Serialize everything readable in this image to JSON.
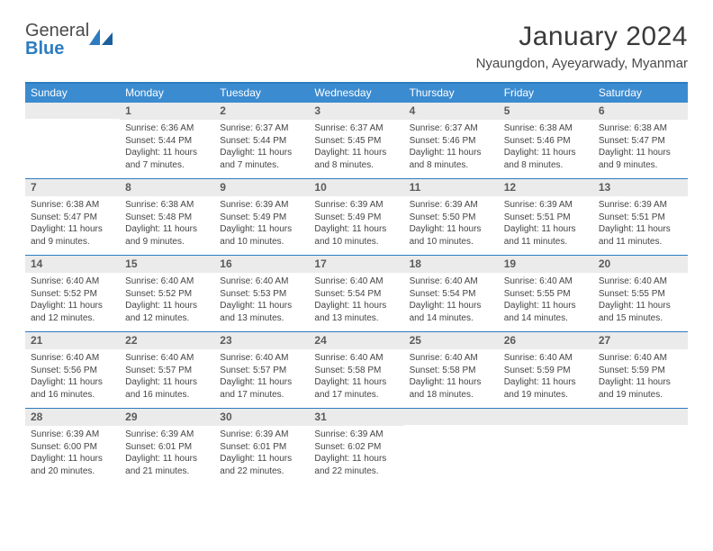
{
  "brand": {
    "part1": "General",
    "part2": "Blue"
  },
  "title": "January 2024",
  "location": "Nyaungdon, Ayeyarwady, Myanmar",
  "colors": {
    "header_bg": "#3b8bd0",
    "border": "#2d7cc0",
    "daynum_bg": "#ebebeb",
    "text": "#444444"
  },
  "dow": [
    "Sunday",
    "Monday",
    "Tuesday",
    "Wednesday",
    "Thursday",
    "Friday",
    "Saturday"
  ],
  "weeks": [
    [
      {
        "n": "",
        "sr": "",
        "ss": "",
        "dl": ""
      },
      {
        "n": "1",
        "sr": "Sunrise: 6:36 AM",
        "ss": "Sunset: 5:44 PM",
        "dl": "Daylight: 11 hours and 7 minutes."
      },
      {
        "n": "2",
        "sr": "Sunrise: 6:37 AM",
        "ss": "Sunset: 5:44 PM",
        "dl": "Daylight: 11 hours and 7 minutes."
      },
      {
        "n": "3",
        "sr": "Sunrise: 6:37 AM",
        "ss": "Sunset: 5:45 PM",
        "dl": "Daylight: 11 hours and 8 minutes."
      },
      {
        "n": "4",
        "sr": "Sunrise: 6:37 AM",
        "ss": "Sunset: 5:46 PM",
        "dl": "Daylight: 11 hours and 8 minutes."
      },
      {
        "n": "5",
        "sr": "Sunrise: 6:38 AM",
        "ss": "Sunset: 5:46 PM",
        "dl": "Daylight: 11 hours and 8 minutes."
      },
      {
        "n": "6",
        "sr": "Sunrise: 6:38 AM",
        "ss": "Sunset: 5:47 PM",
        "dl": "Daylight: 11 hours and 9 minutes."
      }
    ],
    [
      {
        "n": "7",
        "sr": "Sunrise: 6:38 AM",
        "ss": "Sunset: 5:47 PM",
        "dl": "Daylight: 11 hours and 9 minutes."
      },
      {
        "n": "8",
        "sr": "Sunrise: 6:38 AM",
        "ss": "Sunset: 5:48 PM",
        "dl": "Daylight: 11 hours and 9 minutes."
      },
      {
        "n": "9",
        "sr": "Sunrise: 6:39 AM",
        "ss": "Sunset: 5:49 PM",
        "dl": "Daylight: 11 hours and 10 minutes."
      },
      {
        "n": "10",
        "sr": "Sunrise: 6:39 AM",
        "ss": "Sunset: 5:49 PM",
        "dl": "Daylight: 11 hours and 10 minutes."
      },
      {
        "n": "11",
        "sr": "Sunrise: 6:39 AM",
        "ss": "Sunset: 5:50 PM",
        "dl": "Daylight: 11 hours and 10 minutes."
      },
      {
        "n": "12",
        "sr": "Sunrise: 6:39 AM",
        "ss": "Sunset: 5:51 PM",
        "dl": "Daylight: 11 hours and 11 minutes."
      },
      {
        "n": "13",
        "sr": "Sunrise: 6:39 AM",
        "ss": "Sunset: 5:51 PM",
        "dl": "Daylight: 11 hours and 11 minutes."
      }
    ],
    [
      {
        "n": "14",
        "sr": "Sunrise: 6:40 AM",
        "ss": "Sunset: 5:52 PM",
        "dl": "Daylight: 11 hours and 12 minutes."
      },
      {
        "n": "15",
        "sr": "Sunrise: 6:40 AM",
        "ss": "Sunset: 5:52 PM",
        "dl": "Daylight: 11 hours and 12 minutes."
      },
      {
        "n": "16",
        "sr": "Sunrise: 6:40 AM",
        "ss": "Sunset: 5:53 PM",
        "dl": "Daylight: 11 hours and 13 minutes."
      },
      {
        "n": "17",
        "sr": "Sunrise: 6:40 AM",
        "ss": "Sunset: 5:54 PM",
        "dl": "Daylight: 11 hours and 13 minutes."
      },
      {
        "n": "18",
        "sr": "Sunrise: 6:40 AM",
        "ss": "Sunset: 5:54 PM",
        "dl": "Daylight: 11 hours and 14 minutes."
      },
      {
        "n": "19",
        "sr": "Sunrise: 6:40 AM",
        "ss": "Sunset: 5:55 PM",
        "dl": "Daylight: 11 hours and 14 minutes."
      },
      {
        "n": "20",
        "sr": "Sunrise: 6:40 AM",
        "ss": "Sunset: 5:55 PM",
        "dl": "Daylight: 11 hours and 15 minutes."
      }
    ],
    [
      {
        "n": "21",
        "sr": "Sunrise: 6:40 AM",
        "ss": "Sunset: 5:56 PM",
        "dl": "Daylight: 11 hours and 16 minutes."
      },
      {
        "n": "22",
        "sr": "Sunrise: 6:40 AM",
        "ss": "Sunset: 5:57 PM",
        "dl": "Daylight: 11 hours and 16 minutes."
      },
      {
        "n": "23",
        "sr": "Sunrise: 6:40 AM",
        "ss": "Sunset: 5:57 PM",
        "dl": "Daylight: 11 hours and 17 minutes."
      },
      {
        "n": "24",
        "sr": "Sunrise: 6:40 AM",
        "ss": "Sunset: 5:58 PM",
        "dl": "Daylight: 11 hours and 17 minutes."
      },
      {
        "n": "25",
        "sr": "Sunrise: 6:40 AM",
        "ss": "Sunset: 5:58 PM",
        "dl": "Daylight: 11 hours and 18 minutes."
      },
      {
        "n": "26",
        "sr": "Sunrise: 6:40 AM",
        "ss": "Sunset: 5:59 PM",
        "dl": "Daylight: 11 hours and 19 minutes."
      },
      {
        "n": "27",
        "sr": "Sunrise: 6:40 AM",
        "ss": "Sunset: 5:59 PM",
        "dl": "Daylight: 11 hours and 19 minutes."
      }
    ],
    [
      {
        "n": "28",
        "sr": "Sunrise: 6:39 AM",
        "ss": "Sunset: 6:00 PM",
        "dl": "Daylight: 11 hours and 20 minutes."
      },
      {
        "n": "29",
        "sr": "Sunrise: 6:39 AM",
        "ss": "Sunset: 6:01 PM",
        "dl": "Daylight: 11 hours and 21 minutes."
      },
      {
        "n": "30",
        "sr": "Sunrise: 6:39 AM",
        "ss": "Sunset: 6:01 PM",
        "dl": "Daylight: 11 hours and 22 minutes."
      },
      {
        "n": "31",
        "sr": "Sunrise: 6:39 AM",
        "ss": "Sunset: 6:02 PM",
        "dl": "Daylight: 11 hours and 22 minutes."
      },
      {
        "n": "",
        "sr": "",
        "ss": "",
        "dl": ""
      },
      {
        "n": "",
        "sr": "",
        "ss": "",
        "dl": ""
      },
      {
        "n": "",
        "sr": "",
        "ss": "",
        "dl": ""
      }
    ]
  ]
}
